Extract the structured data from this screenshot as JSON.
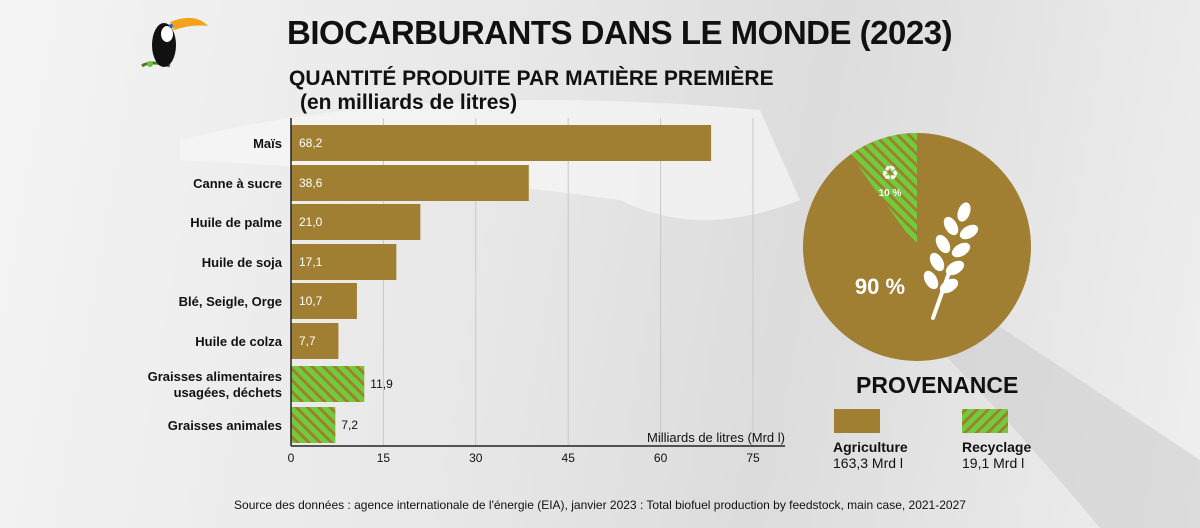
{
  "title": "BIOCARBURANTS DANS LE MONDE (2023)",
  "subtitle_line1": "QUANTITÉ PRODUITE PAR MATIÈRE PREMIÈRE",
  "subtitle_line2": "(en milliards de litres)",
  "source": "Source des données : agence internationale de l'énergie (EIA), janvier 2023 : Total biofuel production by feedstock, main case, 2021-2027",
  "colors": {
    "agriculture": "#a07f32",
    "recycling": "#6fcd3c",
    "background": "#e8e8e8"
  },
  "chart_data": [
    {
      "type": "bar",
      "orientation": "horizontal",
      "categories": [
        "Maïs",
        "Canne à sucre",
        "Huile de palme",
        "Huile de soja",
        "Blé, Seigle, Orge",
        "Huile de colza",
        "Graisses alimentaires usagées, déchets",
        "Graisses animales"
      ],
      "values": [
        68.2,
        38.6,
        21.0,
        17.1,
        10.7,
        7.7,
        11.9,
        7.2
      ],
      "value_labels": [
        "68,2",
        "38,6",
        "21,0",
        "17,1",
        "10,7",
        "7,7",
        "11,9",
        "7,2"
      ],
      "bar_group": [
        "Agriculture",
        "Agriculture",
        "Agriculture",
        "Agriculture",
        "Agriculture",
        "Agriculture",
        "Recyclage",
        "Recyclage"
      ],
      "xlabel": "Milliards de litres (Mrd l)",
      "xlim": [
        0,
        80
      ],
      "xticks": [
        0,
        15,
        30,
        45,
        60,
        75
      ],
      "grid": true
    },
    {
      "type": "pie",
      "title": "PROVENANCE",
      "slices": [
        {
          "name": "Agriculture",
          "percent": 90,
          "label": "90 %",
          "amount": "163,3 Mrd l",
          "icon": "wheat-icon"
        },
        {
          "name": "Recyclage",
          "percent": 10,
          "label": "10 %",
          "amount": "19,1 Mrd l",
          "icon": "recycle-icon"
        }
      ]
    }
  ]
}
